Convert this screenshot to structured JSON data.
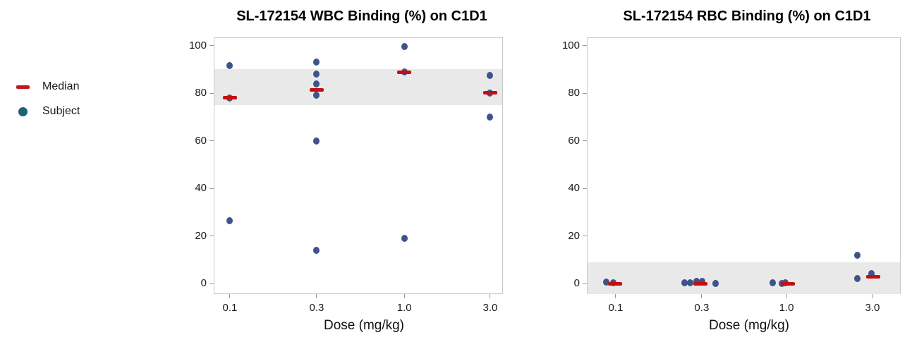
{
  "legend": {
    "items": [
      {
        "label": "Median",
        "marker": "dash",
        "color": "#C2181D"
      },
      {
        "label": "Subject",
        "marker": "circle",
        "color": "#1F607C"
      }
    ]
  },
  "colors": {
    "subject_dot": "#3D5389",
    "median_bar": "#C40E10",
    "reference_band": "#E9E9E9",
    "frame": "#C9C9C9",
    "tick": "#9A9A9A"
  },
  "chart_data": [
    {
      "type": "scatter",
      "title": "SL-172154 WBC Binding (%) on C1D1",
      "xlabel": "Dose (mg/kg)",
      "ylabel": "",
      "x_scale": "log",
      "categories": [
        "0.1",
        "0.3",
        "1.0",
        "3.0"
      ],
      "ylim": [
        0,
        100
      ],
      "yticks": [
        0,
        20,
        40,
        60,
        80,
        100
      ],
      "grid": false,
      "legend_position": "outside-left",
      "reference_band": [
        75,
        90
      ],
      "series": [
        {
          "name": "Subject",
          "role": "points",
          "points": [
            {
              "dose": "0.1",
              "value": 91.5
            },
            {
              "dose": "0.1",
              "value": 78
            },
            {
              "dose": "0.1",
              "value": 26.5
            },
            {
              "dose": "0.3",
              "value": 93
            },
            {
              "dose": "0.3",
              "value": 88
            },
            {
              "dose": "0.3",
              "value": 84
            },
            {
              "dose": "0.3",
              "value": 79.3
            },
            {
              "dose": "0.3",
              "value": 59.8
            },
            {
              "dose": "0.3",
              "value": 14
            },
            {
              "dose": "1.0",
              "value": 99.5
            },
            {
              "dose": "1.0",
              "value": 88.8
            },
            {
              "dose": "1.0",
              "value": 19.2
            },
            {
              "dose": "3.0",
              "value": 87.4
            },
            {
              "dose": "3.0",
              "value": 80.2
            },
            {
              "dose": "3.0",
              "value": 70
            }
          ]
        },
        {
          "name": "Median",
          "role": "medians",
          "points": [
            {
              "dose": "0.1",
              "value": 78
            },
            {
              "dose": "0.3",
              "value": 81.4
            },
            {
              "dose": "1.0",
              "value": 88.8
            },
            {
              "dose": "3.0",
              "value": 80.2
            }
          ]
        }
      ]
    },
    {
      "type": "scatter",
      "title": "SL-172154 RBC Binding (%) on C1D1",
      "xlabel": "Dose (mg/kg)",
      "ylabel": "",
      "x_scale": "log",
      "categories": [
        "0.1",
        "0.3",
        "1.0",
        "3.0"
      ],
      "ylim": [
        0,
        100
      ],
      "yticks": [
        0,
        20,
        40,
        60,
        80,
        100
      ],
      "grid": false,
      "legend_position": "none",
      "reference_band": [
        -5,
        9
      ],
      "series": [
        {
          "name": "Subject",
          "role": "points",
          "points": [
            {
              "dose": "0.1",
              "value": 0.6,
              "dx": -13
            },
            {
              "dose": "0.1",
              "value": 0.35,
              "dx": -3
            },
            {
              "dose": "0.3",
              "value": 0.5,
              "dx": -24
            },
            {
              "dose": "0.3",
              "value": 0.5,
              "dx": -16
            },
            {
              "dose": "0.3",
              "value": 0.9,
              "dx": -7
            },
            {
              "dose": "0.3",
              "value": 0.9,
              "dx": 1
            },
            {
              "dose": "0.3",
              "value": 0.25,
              "dx": 20
            },
            {
              "dose": "1.0",
              "value": 0.3,
              "dx": -20
            },
            {
              "dose": "1.0",
              "value": 0.2,
              "dx": -7
            },
            {
              "dose": "1.0",
              "value": 0.3,
              "dx": -2
            },
            {
              "dose": "3.0",
              "value": 12.1,
              "dx": -21
            },
            {
              "dose": "3.0",
              "value": 2.1,
              "dx": -21
            },
            {
              "dose": "3.0",
              "value": 4.4,
              "dx": -1
            }
          ]
        },
        {
          "name": "Median",
          "role": "medians",
          "points": [
            {
              "dose": "0.1",
              "value": 0,
              "dx": -1
            },
            {
              "dose": "0.3",
              "value": 0,
              "dx": -2
            },
            {
              "dose": "1.0",
              "value": 0,
              "dx": 2
            },
            {
              "dose": "3.0",
              "value": 2.9,
              "dx": 1
            }
          ]
        }
      ]
    }
  ]
}
